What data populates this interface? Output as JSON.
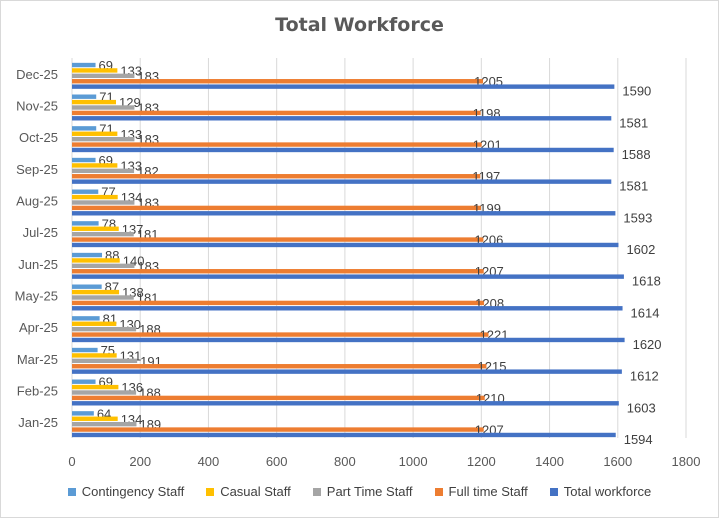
{
  "chart_data": {
    "type": "bar",
    "orientation": "horizontal",
    "title": "Total Workforce",
    "categories": [
      "Jan-25",
      "Feb-25",
      "Mar-25",
      "Apr-25",
      "May-25",
      "Jun-25",
      "Jul-25",
      "Aug-25",
      "Sep-25",
      "Oct-25",
      "Nov-25",
      "Dec-25"
    ],
    "xlim": [
      0,
      1800
    ],
    "xticks": [
      0,
      200,
      400,
      600,
      800,
      1000,
      1200,
      1400,
      1600,
      1800
    ],
    "grid": true,
    "legend_position": "bottom",
    "series": [
      {
        "name": "Contingency Staff",
        "color": "#5b9bd5",
        "values": [
          64,
          69,
          75,
          81,
          87,
          88,
          78,
          77,
          69,
          71,
          71,
          69
        ]
      },
      {
        "name": "Casual Staff",
        "color": "#ffc000",
        "values": [
          134,
          136,
          131,
          130,
          138,
          140,
          137,
          134,
          133,
          133,
          129,
          133
        ]
      },
      {
        "name": "Part Time Staff",
        "color": "#a5a5a5",
        "values": [
          189,
          188,
          191,
          188,
          181,
          183,
          181,
          183,
          182,
          183,
          183,
          183
        ]
      },
      {
        "name": "Full time Staff",
        "color": "#ed7d31",
        "values": [
          1207,
          1210,
          1215,
          1221,
          1208,
          1207,
          1206,
          1199,
          1197,
          1201,
          1198,
          1205
        ]
      },
      {
        "name": "Total workforce",
        "color": "#4472c4",
        "values": [
          1594,
          1603,
          1612,
          1620,
          1614,
          1618,
          1602,
          1593,
          1581,
          1588,
          1581,
          1590
        ]
      }
    ]
  }
}
